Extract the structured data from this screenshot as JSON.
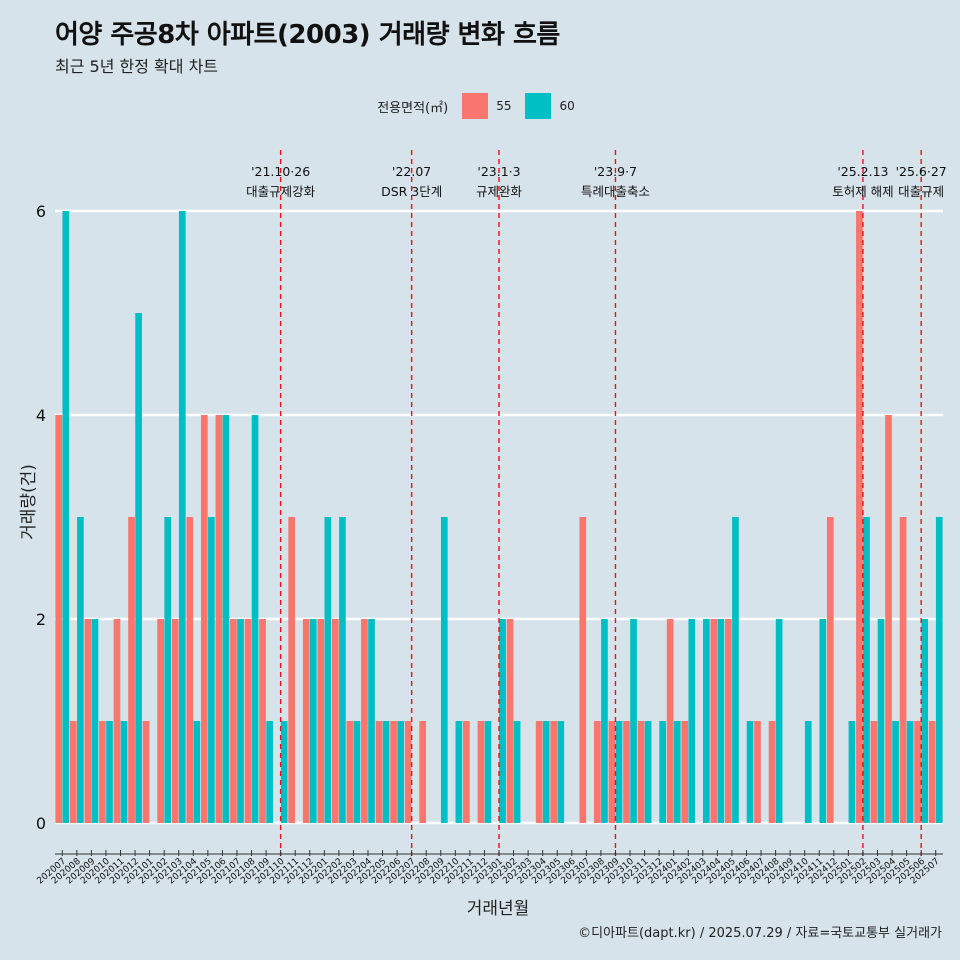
{
  "chart_data": {
    "type": "bar",
    "title": "어양 주공8차 아파트(2003) 거래량 변화 흐름",
    "subtitle": "최근 5년 한정 확대 차트",
    "xlabel": "거래년월",
    "ylabel": "거래량(건)",
    "ylim": [
      0,
      6
    ],
    "yticks": [
      0,
      2,
      4,
      6
    ],
    "legend_title": "전용면적(㎡)",
    "legend_position": "top",
    "caption": "©디아파트(dapt.kr) / 2025.07.29 / 자료=국토교통부 실거래가",
    "colors": {
      "55": "#f8766d",
      "60": "#00bfc4",
      "background": "#d6e3ea",
      "vline": "#ee1111"
    },
    "categories": [
      "202007",
      "202008",
      "202009",
      "202010",
      "202011",
      "202012",
      "202101",
      "202102",
      "202103",
      "202104",
      "202105",
      "202106",
      "202107",
      "202108",
      "202109",
      "202110",
      "202111",
      "202112",
      "202201",
      "202202",
      "202203",
      "202204",
      "202205",
      "202206",
      "202207",
      "202208",
      "202209",
      "202210",
      "202211",
      "202212",
      "202301",
      "202302",
      "202303",
      "202304",
      "202305",
      "202306",
      "202307",
      "202308",
      "202309",
      "202310",
      "202311",
      "202312",
      "202401",
      "202402",
      "202403",
      "202404",
      "202405",
      "202406",
      "202407",
      "202408",
      "202409",
      "202410",
      "202411",
      "202412",
      "202501",
      "202502",
      "202503",
      "202504",
      "202505",
      "202506",
      "202507"
    ],
    "series": [
      {
        "name": "55",
        "values": [
          4,
          1,
          2,
          1,
          2,
          3,
          1,
          2,
          2,
          3,
          4,
          4,
          2,
          2,
          2,
          0,
          3,
          2,
          2,
          2,
          1,
          2,
          1,
          1,
          1,
          1,
          0,
          0,
          1,
          1,
          0,
          2,
          0,
          1,
          1,
          0,
          3,
          1,
          1,
          1,
          1,
          0,
          2,
          1,
          0,
          2,
          2,
          0,
          1,
          1,
          0,
          0,
          0,
          3,
          0,
          6,
          1,
          4,
          3,
          1,
          1
        ]
      },
      {
        "name": "60",
        "values": [
          6,
          3,
          2,
          1,
          1,
          5,
          0,
          3,
          6,
          1,
          3,
          4,
          2,
          4,
          1,
          1,
          0,
          2,
          3,
          3,
          1,
          2,
          1,
          1,
          0,
          0,
          3,
          1,
          0,
          1,
          2,
          1,
          0,
          1,
          1,
          0,
          0,
          2,
          1,
          2,
          1,
          1,
          1,
          2,
          2,
          2,
          3,
          1,
          0,
          2,
          0,
          1,
          2,
          0,
          1,
          3,
          2,
          1,
          1,
          2,
          3
        ]
      }
    ],
    "annotations": [
      {
        "category": "202110",
        "date": "'21.10·26",
        "text": "대출규제강화"
      },
      {
        "category": "202207",
        "date": "'22.07",
        "text": "DSR 3단계"
      },
      {
        "category": "202301",
        "date": "'23.1·3",
        "text": "규제완화"
      },
      {
        "category": "202309",
        "date": "'23.9·7",
        "text": "특례대출축소"
      },
      {
        "category": "202502",
        "date": "'25.2.13",
        "text": "토허제 해제"
      },
      {
        "category": "202506",
        "date": "'25.6·27",
        "text": "대출규제"
      }
    ]
  }
}
